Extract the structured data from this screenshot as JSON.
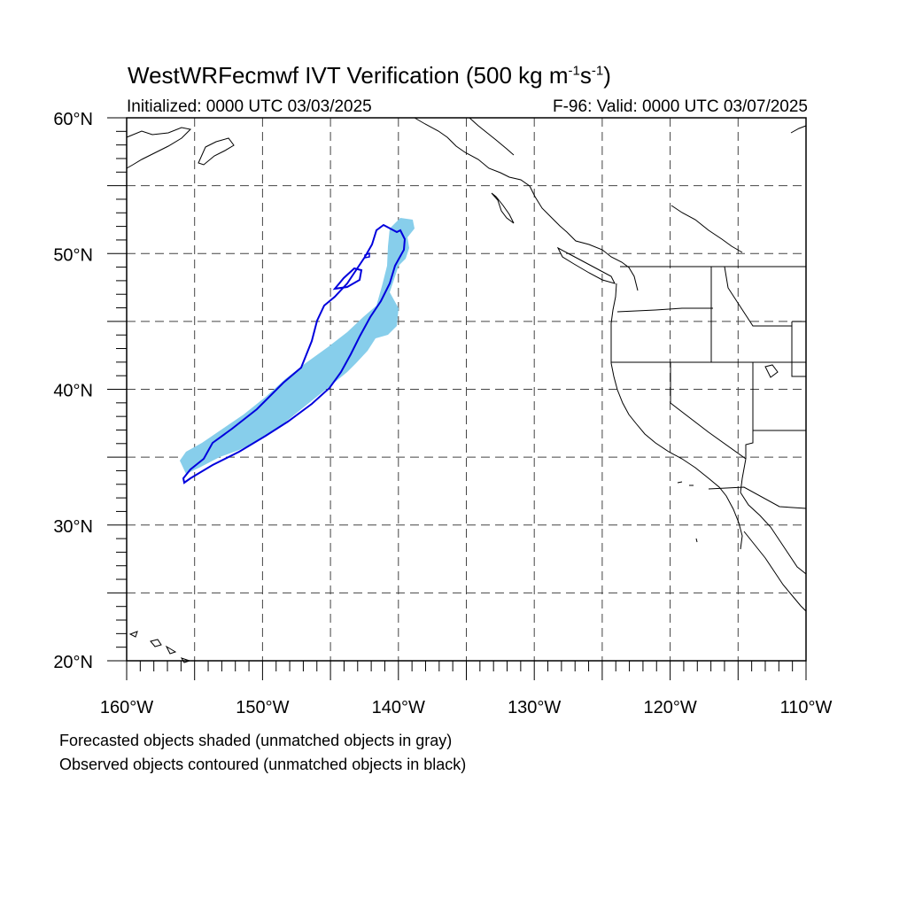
{
  "title": {
    "main": "WestWRFecmwf IVT Verification (500 kg m",
    "exp1": "-1",
    "mid": "s",
    "exp2": "-1",
    "end": ")"
  },
  "initialized": "Initialized: 0000 UTC 03/03/2025",
  "valid": "F-96: Valid: 0000 UTC 03/07/2025",
  "lat_labels": [
    {
      "text": "60°N",
      "lat": 60
    },
    {
      "text": "50°N",
      "lat": 50
    },
    {
      "text": "40°N",
      "lat": 40
    },
    {
      "text": "30°N",
      "lat": 30
    },
    {
      "text": "20°N",
      "lat": 20
    }
  ],
  "lon_labels": [
    {
      "text": "160°W",
      "lon": -160
    },
    {
      "text": "150°W",
      "lon": -150
    },
    {
      "text": "140°W",
      "lon": -140
    },
    {
      "text": "130°W",
      "lon": -130
    },
    {
      "text": "120°W",
      "lon": -120
    },
    {
      "text": "110°W",
      "lon": -110
    }
  ],
  "captions": [
    "Forecasted objects shaded (unmatched objects in gray)",
    "Observed objects contoured (unmatched objects in black)"
  ],
  "colors": {
    "forecast_fill": "#87ceeb",
    "observed_contour": "#0000dd",
    "coast": "#000000",
    "grid": "#444444"
  },
  "map_extent": {
    "lon": [
      -160,
      -110
    ],
    "lat": [
      20,
      60
    ]
  }
}
